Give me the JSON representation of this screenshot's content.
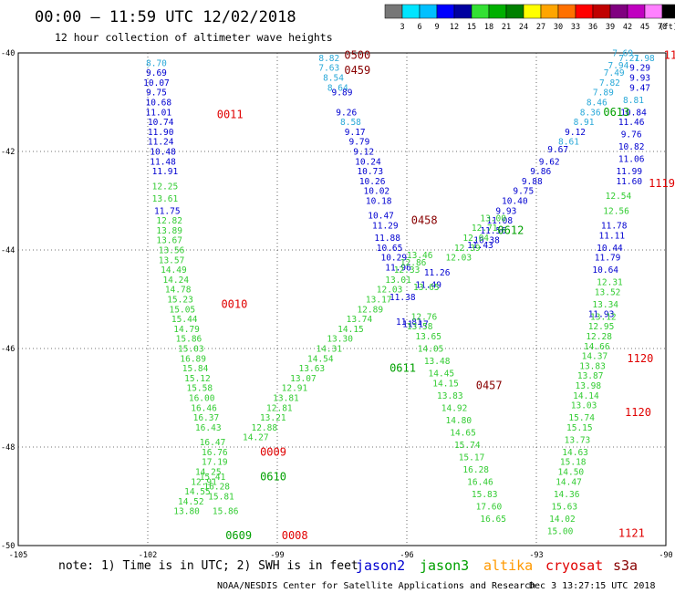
{
  "header": {
    "title": "00:00 – 11:59 UTC 12/02/2018",
    "subtitle": "12 hour collection of altimeter wave heights"
  },
  "colorbar": {
    "unit": "(ft)",
    "labels": [
      "3",
      "6",
      "9",
      "12",
      "15",
      "18",
      "21",
      "24",
      "27",
      "30",
      "33",
      "36",
      "39",
      "42",
      "45",
      "70"
    ],
    "colors": [
      "#777777",
      "#00e5ff",
      "#00c0ff",
      "#0000ff",
      "#0000a0",
      "#33e033",
      "#00b000",
      "#008000",
      "#ffff00",
      "#ffa500",
      "#ff7000",
      "#ff0000",
      "#c00000",
      "#800080",
      "#c000c0",
      "#ff80ff",
      "#000000"
    ]
  },
  "footer": {
    "note": "note: 1) Time is in UTC; 2) SWH is in feet",
    "credit": "NOAA/NESDIS Center for Satellite Applications and Research",
    "timestamp": "Dec  3 13:27:15 UTC 2018",
    "satellites": [
      {
        "name": "jason2",
        "color": "#0000d0"
      },
      {
        "name": "jason3",
        "color": "#00a000"
      },
      {
        "name": "altika",
        "color": "#ff9900"
      },
      {
        "name": "cryosat",
        "color": "#e00000"
      },
      {
        "name": "s3a",
        "color": "#880000"
      }
    ]
  },
  "chart_data": {
    "type": "scatter",
    "xlim": [
      -105,
      -90
    ],
    "ylim": [
      -50,
      -40
    ],
    "xticks": [
      "-105",
      "-102",
      "-99",
      "-96",
      "-93",
      "-90"
    ],
    "yticks": [
      "-40",
      "-42",
      "-44",
      "-46",
      "-48",
      "-50"
    ],
    "grid": true,
    "series": [
      {
        "name": "jason2",
        "color": "#0000d0",
        "points": [
          [
            -101.8,
            -40.2,
            "8.70",
            "#28a8d8"
          ],
          [
            -101.8,
            -40.4,
            "9.69"
          ],
          [
            -101.8,
            -40.6,
            "10.07"
          ],
          [
            -101.8,
            -40.8,
            "9.75"
          ],
          [
            -101.75,
            -41.0,
            "10.68"
          ],
          [
            -101.75,
            -41.2,
            "11.01"
          ],
          [
            -101.7,
            -41.4,
            "10.74"
          ],
          [
            -101.7,
            -41.6,
            "11.90"
          ],
          [
            -101.7,
            -41.8,
            "11.24"
          ],
          [
            -101.65,
            -42.0,
            "10.48"
          ],
          [
            -101.65,
            -42.2,
            "11.48"
          ],
          [
            -101.6,
            -42.4,
            "11.91"
          ],
          [
            -101.55,
            -43.2,
            "11.75"
          ],
          [
            -97.8,
            -40.1,
            "8.82",
            "#28a8d8"
          ],
          [
            -97.8,
            -40.3,
            "7.63",
            "#28a8d8"
          ],
          [
            -97.7,
            -40.5,
            "8.54",
            "#28a8d8"
          ],
          [
            -97.6,
            -40.7,
            "8.64",
            "#28a8d8"
          ],
          [
            -97.5,
            -40.8,
            "9.89"
          ],
          [
            -97.4,
            -41.2,
            "9.26"
          ],
          [
            -97.3,
            -41.4,
            "8.58",
            "#28a8d8"
          ],
          [
            -97.2,
            -41.6,
            "9.17"
          ],
          [
            -97.1,
            -41.8,
            "9.79"
          ],
          [
            -97.0,
            -42.0,
            "9.12"
          ],
          [
            -96.9,
            -42.2,
            "10.24"
          ],
          [
            -96.85,
            -42.4,
            "10.73"
          ],
          [
            -96.8,
            -42.6,
            "10.26"
          ],
          [
            -96.7,
            -42.8,
            "10.02"
          ],
          [
            -96.65,
            -43.0,
            "10.18"
          ],
          [
            -96.6,
            -43.3,
            "10.47"
          ],
          [
            -96.5,
            -43.5,
            "11.29"
          ],
          [
            -96.45,
            -43.75,
            "11.88"
          ],
          [
            -96.4,
            -43.95,
            "10.65"
          ],
          [
            -96.3,
            -44.15,
            "10.29"
          ],
          [
            -96.2,
            -44.35,
            "11.96"
          ],
          [
            -96.1,
            -44.95,
            "11.38"
          ],
          [
            -95.95,
            -45.45,
            "11.81"
          ],
          [
            -95.8,
            -45.5,
            "11.17"
          ],
          [
            -95.5,
            -44.7,
            "11.49"
          ],
          [
            -95.3,
            -44.45,
            "11.26"
          ],
          [
            -91.0,
            -40.0,
            "7.69",
            "#28a8d8"
          ],
          [
            -90.85,
            -40.1,
            "7.21",
            "#28a8d8"
          ],
          [
            -90.5,
            -40.1,
            "7.98",
            "#28a8d8"
          ],
          [
            -91.1,
            -40.25,
            "7.94",
            "#28a8d8"
          ],
          [
            -90.6,
            -40.3,
            "9.29"
          ],
          [
            -91.2,
            -40.4,
            "7.49",
            "#28a8d8"
          ],
          [
            -90.6,
            -40.5,
            "9.93"
          ],
          [
            -91.3,
            -40.6,
            "7.82",
            "#28a8d8"
          ],
          [
            -90.6,
            -40.7,
            "9.47"
          ],
          [
            -91.45,
            -40.8,
            "7.89",
            "#28a8d8"
          ],
          [
            -90.75,
            -40.95,
            "8.81",
            "#28a8d8"
          ],
          [
            -91.6,
            -41.0,
            "8.46",
            "#28a8d8"
          ],
          [
            -90.75,
            -41.2,
            "10.84"
          ],
          [
            -91.75,
            -41.2,
            "8.36",
            "#28a8d8"
          ],
          [
            -91.9,
            -41.4,
            "8.91",
            "#28a8d8"
          ],
          [
            -90.8,
            -41.4,
            "11.46"
          ],
          [
            -92.1,
            -41.6,
            "9.12"
          ],
          [
            -90.8,
            -41.65,
            "9.76"
          ],
          [
            -92.25,
            -41.8,
            "8.61",
            "#28a8d8"
          ],
          [
            -90.8,
            -41.9,
            "10.82"
          ],
          [
            -92.5,
            -41.95,
            "9.67"
          ],
          [
            -90.8,
            -42.15,
            "11.06"
          ],
          [
            -92.7,
            -42.2,
            "9.62"
          ],
          [
            -90.85,
            -42.4,
            "11.99"
          ],
          [
            -92.9,
            -42.4,
            "9.86"
          ],
          [
            -93.1,
            -42.6,
            "9.88"
          ],
          [
            -90.85,
            -42.6,
            "11.60"
          ],
          [
            -93.3,
            -42.8,
            "9.75"
          ],
          [
            -93.5,
            -43.0,
            "10.40"
          ],
          [
            -93.7,
            -43.2,
            "9.93"
          ],
          [
            -93.85,
            -43.4,
            "11.08"
          ],
          [
            -94.0,
            -43.6,
            "11.56"
          ],
          [
            -94.15,
            -43.8,
            "10.38"
          ],
          [
            -94.3,
            -43.9,
            "11.43"
          ],
          [
            -91.2,
            -43.5,
            "11.78"
          ],
          [
            -91.25,
            -43.7,
            "11.11"
          ],
          [
            -91.3,
            -43.95,
            "10.44"
          ],
          [
            -91.35,
            -44.15,
            "11.79"
          ],
          [
            -91.4,
            -44.4,
            "10.64"
          ],
          [
            -91.5,
            -45.3,
            "11.93"
          ]
        ]
      },
      {
        "name": "jason3",
        "color": "#33cc33",
        "points": [
          [
            -101.6,
            -42.7,
            "12.25"
          ],
          [
            -101.6,
            -42.95,
            "13.61"
          ],
          [
            -101.5,
            -43.4,
            "12.82"
          ],
          [
            -101.5,
            -43.6,
            "13.89"
          ],
          [
            -101.5,
            -43.8,
            "13.67"
          ],
          [
            -101.45,
            -44.0,
            "13.56"
          ],
          [
            -101.45,
            -44.2,
            "13.57"
          ],
          [
            -101.4,
            -44.4,
            "14.49"
          ],
          [
            -101.35,
            -44.6,
            "14.24"
          ],
          [
            -101.3,
            -44.8,
            "14.78"
          ],
          [
            -101.25,
            -45.0,
            "15.23"
          ],
          [
            -101.2,
            -45.2,
            "15.05"
          ],
          [
            -101.15,
            -45.4,
            "15.44"
          ],
          [
            -101.1,
            -45.6,
            "14.79"
          ],
          [
            -101.05,
            -45.8,
            "15.86"
          ],
          [
            -101.0,
            -46.0,
            "15.03"
          ],
          [
            -100.95,
            -46.2,
            "16.89"
          ],
          [
            -100.9,
            -46.4,
            "15.84"
          ],
          [
            -100.85,
            -46.6,
            "15.12"
          ],
          [
            -100.8,
            -46.8,
            "15.58"
          ],
          [
            -100.75,
            -47.0,
            "16.00"
          ],
          [
            -100.7,
            -47.2,
            "16.46"
          ],
          [
            -100.65,
            -47.4,
            "16.37"
          ],
          [
            -100.6,
            -47.6,
            "16.43"
          ],
          [
            -100.5,
            -47.9,
            "16.47"
          ],
          [
            -100.45,
            -48.1,
            "16.76"
          ],
          [
            -100.45,
            -48.3,
            "17.19"
          ],
          [
            -100.6,
            -48.5,
            "14.25"
          ],
          [
            -100.7,
            -48.7,
            "12.91"
          ],
          [
            -100.85,
            -48.9,
            "14.55"
          ],
          [
            -101.0,
            -49.1,
            "14.52"
          ],
          [
            -101.1,
            -49.3,
            "13.80"
          ],
          [
            -100.5,
            -48.6,
            "15.41"
          ],
          [
            -100.4,
            -48.8,
            "16.28"
          ],
          [
            -100.3,
            -49.0,
            "15.81"
          ],
          [
            -100.2,
            -49.3,
            "15.86"
          ],
          [
            -99.5,
            -47.8,
            "14.27"
          ],
          [
            -99.3,
            -47.6,
            "12.88"
          ],
          [
            -99.1,
            -47.4,
            "13.21"
          ],
          [
            -98.95,
            -47.2,
            "12.81"
          ],
          [
            -98.8,
            -47.0,
            "13.81"
          ],
          [
            -98.6,
            -46.8,
            "12.91"
          ],
          [
            -98.4,
            -46.6,
            "13.07"
          ],
          [
            -98.2,
            -46.4,
            "13.63"
          ],
          [
            -98.0,
            -46.2,
            "14.54"
          ],
          [
            -97.8,
            -46.0,
            "14.31"
          ],
          [
            -97.55,
            -45.8,
            "13.30"
          ],
          [
            -97.3,
            -45.6,
            "14.15"
          ],
          [
            -97.1,
            -45.4,
            "13.74"
          ],
          [
            -96.85,
            -45.2,
            "12.89"
          ],
          [
            -96.65,
            -45.0,
            "13.17"
          ],
          [
            -96.4,
            -44.8,
            "12.03"
          ],
          [
            -96.2,
            -44.6,
            "13.01"
          ],
          [
            -96.0,
            -44.4,
            "12.33"
          ],
          [
            -95.85,
            -44.25,
            "12.86"
          ],
          [
            -95.7,
            -44.1,
            "13.46"
          ],
          [
            -95.55,
            -44.75,
            "13.65"
          ],
          [
            -95.6,
            -45.35,
            "12.76"
          ],
          [
            -95.7,
            -45.55,
            "13.58"
          ],
          [
            -95.5,
            -45.75,
            "13.65"
          ],
          [
            -95.45,
            -46.0,
            "14.05"
          ],
          [
            -95.3,
            -46.25,
            "13.48"
          ],
          [
            -95.2,
            -46.5,
            "14.45"
          ],
          [
            -95.1,
            -46.7,
            "14.15"
          ],
          [
            -95.0,
            -46.95,
            "13.83"
          ],
          [
            -94.9,
            -47.2,
            "14.92"
          ],
          [
            -94.8,
            -47.45,
            "14.80"
          ],
          [
            -94.7,
            -47.7,
            "14.65"
          ],
          [
            -94.6,
            -47.95,
            "15.74"
          ],
          [
            -94.5,
            -48.2,
            "15.17"
          ],
          [
            -94.4,
            -48.45,
            "16.28"
          ],
          [
            -94.3,
            -48.7,
            "16.46"
          ],
          [
            -94.2,
            -48.95,
            "15.83"
          ],
          [
            -94.1,
            -49.2,
            "17.60"
          ],
          [
            -94.0,
            -49.45,
            "16.65"
          ],
          [
            -94.8,
            -44.15,
            "12.03"
          ],
          [
            -94.6,
            -43.95,
            "12.39"
          ],
          [
            -94.4,
            -43.75,
            "12.04"
          ],
          [
            -94.2,
            -43.55,
            "12.71"
          ],
          [
            -94.0,
            -43.35,
            "13.00"
          ],
          [
            -91.1,
            -42.9,
            "12.54"
          ],
          [
            -91.15,
            -43.2,
            "12.56"
          ],
          [
            -91.3,
            -44.65,
            "12.31"
          ],
          [
            -91.35,
            -44.85,
            "13.52"
          ],
          [
            -91.4,
            -45.1,
            "13.34"
          ],
          [
            -91.45,
            -45.35,
            "13.12"
          ],
          [
            -91.5,
            -45.55,
            "12.95"
          ],
          [
            -91.55,
            -45.75,
            "12.28"
          ],
          [
            -91.6,
            -45.95,
            "14.66"
          ],
          [
            -91.65,
            -46.15,
            "14.37"
          ],
          [
            -91.7,
            -46.35,
            "13.83"
          ],
          [
            -91.75,
            -46.55,
            "13.87"
          ],
          [
            -91.8,
            -46.75,
            "13.98"
          ],
          [
            -91.85,
            -46.95,
            "14.14"
          ],
          [
            -91.9,
            -47.15,
            "13.03"
          ],
          [
            -91.95,
            -47.4,
            "15.74"
          ],
          [
            -92.0,
            -47.6,
            "15.15"
          ],
          [
            -92.05,
            -47.85,
            "13.73"
          ],
          [
            -92.1,
            -48.1,
            "14.63"
          ],
          [
            -92.15,
            -48.3,
            "15.18"
          ],
          [
            -92.2,
            -48.5,
            "14.50"
          ],
          [
            -92.25,
            -48.7,
            "14.47"
          ],
          [
            -92.3,
            -48.95,
            "14.36"
          ],
          [
            -92.35,
            -49.2,
            "15.63"
          ],
          [
            -92.4,
            -49.45,
            "14.02"
          ],
          [
            -92.45,
            -49.7,
            "15.00"
          ]
        ]
      }
    ],
    "time_labels": [
      {
        "x": -97.45,
        "y": -40.05,
        "text": "0500",
        "color": "#880000"
      },
      {
        "x": -97.45,
        "y": -40.35,
        "text": "0459",
        "color": "#880000"
      },
      {
        "x": -100.4,
        "y": -41.25,
        "text": "0011",
        "color": "#e00000"
      },
      {
        "x": -100.3,
        "y": -45.1,
        "text": "0010",
        "color": "#e00000"
      },
      {
        "x": -99.4,
        "y": -48.1,
        "text": "0009",
        "color": "#e00000"
      },
      {
        "x": -98.9,
        "y": -49.8,
        "text": "0008",
        "color": "#e00000"
      },
      {
        "x": -95.9,
        "y": -43.4,
        "text": "0458",
        "color": "#880000"
      },
      {
        "x": -94.4,
        "y": -46.75,
        "text": "0457",
        "color": "#880000"
      },
      {
        "x": -96.4,
        "y": -46.4,
        "text": "0611",
        "color": "#00a000"
      },
      {
        "x": -93.9,
        "y": -43.6,
        "text": "0612",
        "color": "#00a000"
      },
      {
        "x": -99.4,
        "y": -48.6,
        "text": "0610",
        "color": "#00a000"
      },
      {
        "x": -100.2,
        "y": -49.8,
        "text": "0609",
        "color": "#00a000"
      },
      {
        "x": -91.45,
        "y": -41.2,
        "text": "0613",
        "color": "#00a000"
      },
      {
        "x": -90.05,
        "y": -40.05,
        "text": "11",
        "color": "#e00000"
      },
      {
        "x": -90.4,
        "y": -42.65,
        "text": "1119",
        "color": "#e00000"
      },
      {
        "x": -90.9,
        "y": -46.2,
        "text": "1120",
        "color": "#e00000"
      },
      {
        "x": -90.95,
        "y": -47.3,
        "text": "1120",
        "color": "#e00000"
      },
      {
        "x": -91.1,
        "y": -49.75,
        "text": "1121",
        "color": "#e00000"
      }
    ]
  }
}
